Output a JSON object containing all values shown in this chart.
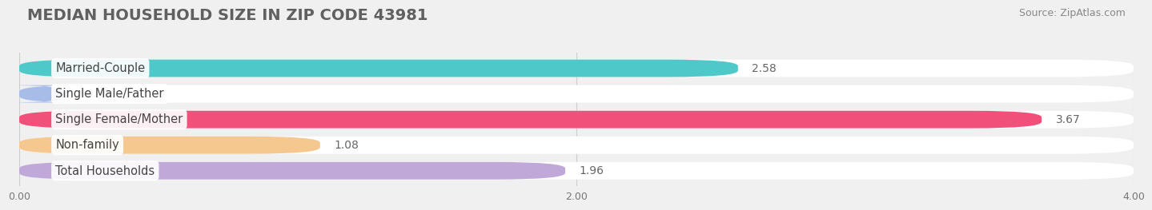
{
  "title": "MEDIAN HOUSEHOLD SIZE IN ZIP CODE 43981",
  "source": "Source: ZipAtlas.com",
  "categories": [
    "Married-Couple",
    "Single Male/Father",
    "Single Female/Mother",
    "Non-family",
    "Total Households"
  ],
  "values": [
    2.58,
    0.0,
    3.67,
    1.08,
    1.96
  ],
  "bar_colors": [
    "#4ec8c8",
    "#a8bce8",
    "#f0507a",
    "#f5c890",
    "#c0a8d8"
  ],
  "bar_bg_colors": [
    "#e0f5f5",
    "#dde6f8",
    "#fce0e8",
    "#fdf0dc",
    "#ede0f5"
  ],
  "xlim": [
    0,
    4.0
  ],
  "xticks": [
    0.0,
    2.0,
    4.0
  ],
  "xtick_labels": [
    "0.00",
    "2.00",
    "4.00"
  ],
  "background_color": "#f0f0f0",
  "bar_background_color": "#ffffff",
  "title_fontsize": 14,
  "label_fontsize": 10.5,
  "value_fontsize": 10,
  "source_fontsize": 9
}
